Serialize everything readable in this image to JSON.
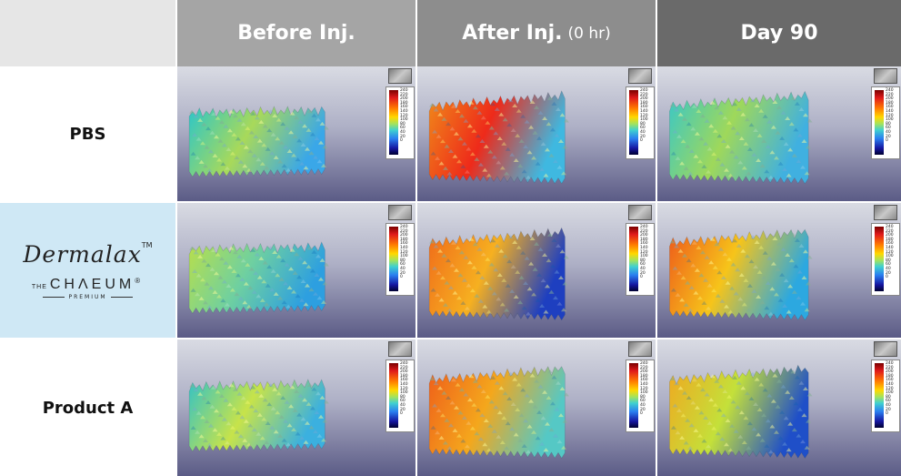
{
  "header": {
    "col1": "Before Inj.",
    "col2": "After Inj.",
    "col2_sub": "(0 hr)",
    "col3": "Day 90",
    "colors": {
      "col0": "#e6e6e6",
      "col1": "#a5a5a5",
      "col2": "#8d8d8d",
      "col3": "#6a6a6a"
    }
  },
  "rows": [
    {
      "label": "PBS"
    },
    {
      "label": "",
      "brand": {
        "name": "Dermalax",
        "tm": "TM",
        "the": "THE",
        "chaeum": "CHΛEUM",
        "reg": "®",
        "premium": "PREMIUM"
      },
      "bg": "#cfe8f5"
    },
    {
      "label": "Product A"
    }
  ],
  "scale_ticks": [
    "240",
    "220",
    "200",
    "180",
    "160",
    "140",
    "120",
    "100",
    "80",
    "60",
    "40",
    "20",
    "0"
  ]
}
